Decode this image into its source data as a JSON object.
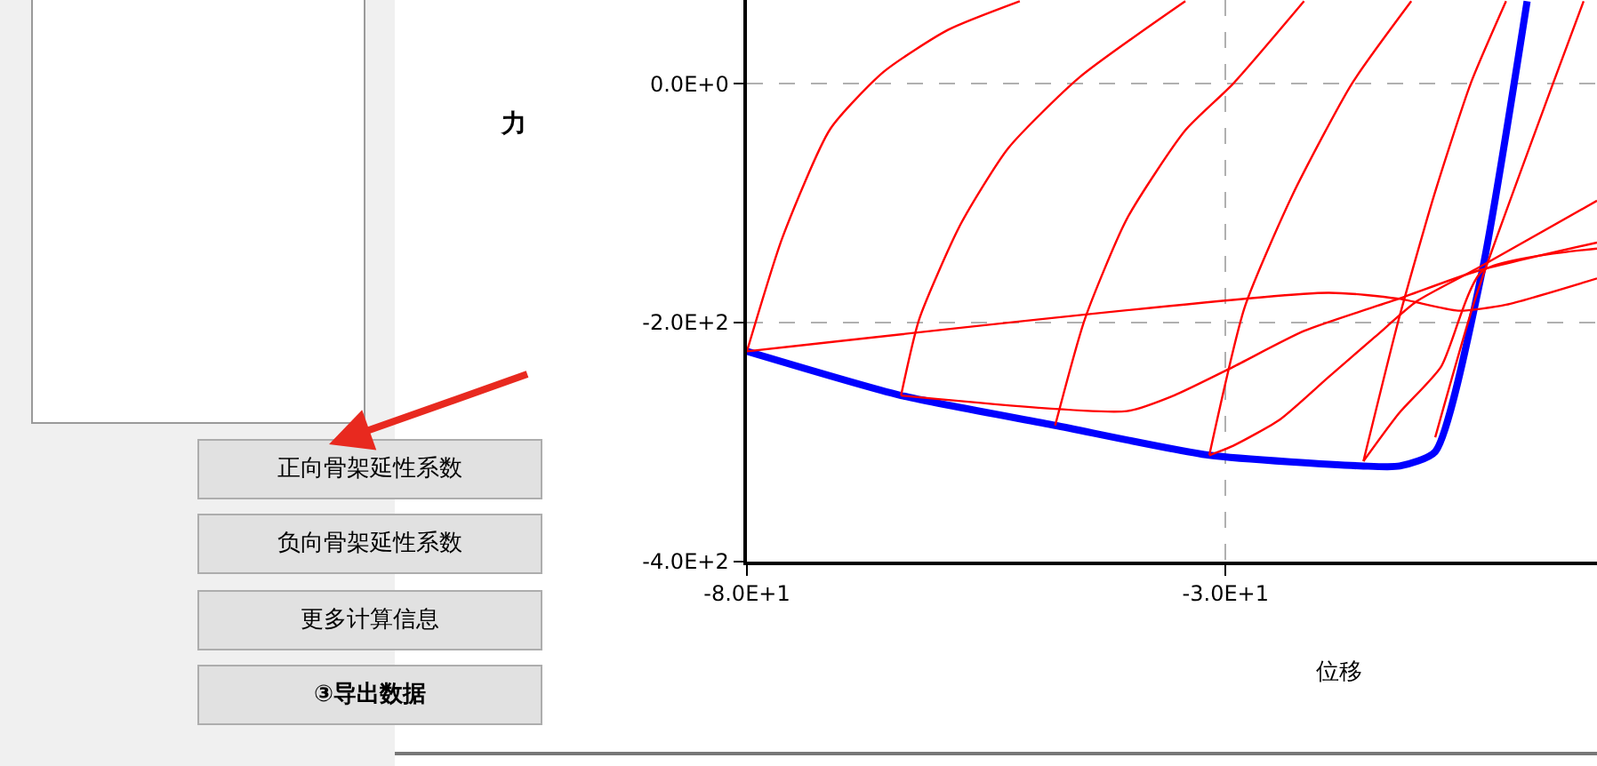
{
  "chart_data": {
    "type": "line",
    "xlabel": "位移",
    "ylabel": "力",
    "xlim": [
      -80,
      8.8
    ],
    "ylim": [
      -400,
      70
    ],
    "xticks": [
      {
        "value": -80,
        "label": "-8.0E+1"
      },
      {
        "value": -30,
        "label": "-3.0E+1"
      }
    ],
    "yticks": [
      {
        "value": 0,
        "label": "0.0E+0"
      },
      {
        "value": -200,
        "label": "-2.0E+2"
      },
      {
        "value": -400,
        "label": "-4.0E+2"
      }
    ],
    "grid": true,
    "marker": "none",
    "line_style": "solid",
    "annotations": [
      "正向骨架延性系数",
      "负向骨架延性系数",
      "更多计算信息",
      "③导出数据"
    ],
    "series": [
      {
        "color": "#0000ff",
        "x": [
          -80,
          -63.9,
          -47.8,
          -31.7,
          -15.6,
          -11.8,
          -8.1,
          -3.2,
          1.5
        ],
        "values": [
          -224,
          -261,
          -286,
          -311,
          -320,
          -320,
          -308,
          -157,
          69
        ]
      },
      {
        "color": "#ff0000",
        "x": [
          -80,
          -76.3,
          -71.3,
          -65.7,
          -59,
          -51.5
        ],
        "values": [
          -224,
          -129,
          -38,
          10,
          45,
          69
        ]
      },
      {
        "color": "#ff0000",
        "x": [
          -63.9,
          -62,
          -57.7,
          -52.7,
          -45.3,
          -34.2
        ],
        "values": [
          -261,
          -197,
          -118,
          -54,
          5,
          69
        ]
      },
      {
        "color": "#ff0000",
        "x": [
          -47.8,
          -44.7,
          -40.3,
          -34.2,
          -29.2,
          -21.8
        ],
        "values": [
          -286,
          -197,
          -113,
          -39,
          0,
          69
        ]
      },
      {
        "color": "#ff0000",
        "x": [
          -31.7,
          -28,
          -23,
          -16.8,
          -10.6
        ],
        "values": [
          -311,
          -187,
          -93,
          0,
          69
        ]
      },
      {
        "color": "#ff0000",
        "x": [
          -15.6,
          -11.9,
          -8.2,
          -4.4,
          -0.7
        ],
        "values": [
          -316,
          -197,
          -93,
          0,
          69
        ]
      },
      {
        "color": "#ff0000",
        "x": [
          -80,
          -19.3,
          -11.9,
          -5.7,
          -0.7,
          8.8
        ],
        "values": [
          -224,
          -175,
          -180,
          -190,
          -185,
          -163
        ]
      },
      {
        "color": "#ff0000",
        "x": [
          -63.9,
          -40.3,
          -35.4,
          -29.2,
          -21.8,
          -11.9,
          -3.8,
          8.8
        ],
        "values": [
          -261,
          -274,
          -261,
          -237,
          -207,
          -180,
          -157,
          -133
        ]
      },
      {
        "color": "#ff0000",
        "x": [
          -31.7,
          -29.2,
          -24.3,
          -19.3,
          -14.4,
          -10,
          -3.8,
          8.8
        ],
        "values": [
          -311,
          -303,
          -281,
          -246,
          -212,
          -182,
          -155,
          -98
        ]
      },
      {
        "color": "#ff0000",
        "x": [
          -15.6,
          -11.9,
          -7.5,
          -3.2,
          8.8
        ],
        "values": [
          -316,
          -276,
          -237,
          -157,
          -138
        ]
      },
      {
        "color": "#ff0000",
        "x": [
          -8.1,
          -3.8,
          4.2,
          7.4
        ],
        "values": [
          -296,
          -177,
          0,
          69
        ]
      }
    ]
  }
}
